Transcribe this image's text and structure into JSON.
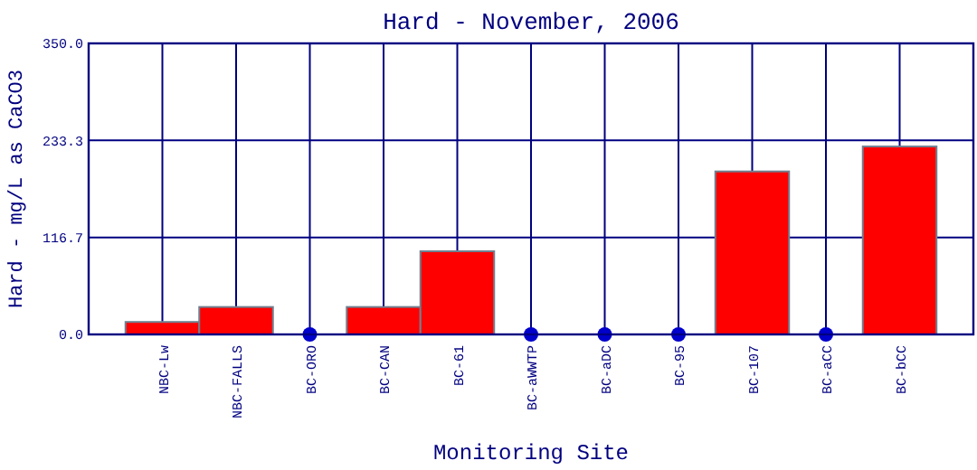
{
  "chart_data": {
    "type": "bar",
    "title": "Hard - November, 2006",
    "xlabel": "Monitoring Site",
    "ylabel": "Hard - mg/L as CaCO3",
    "categories": [
      "NBC-Lw",
      "NBC-FALLS",
      "BC-ORO",
      "BC-CAN",
      "BC-61",
      "BC-aWWTP",
      "BC-aDC",
      "BC-95",
      "BC-107",
      "BC-aCC",
      "BC-bCC"
    ],
    "series": [
      {
        "color": "#ff0000",
        "values": [
          15,
          33,
          null,
          33,
          100,
          null,
          null,
          null,
          196,
          null,
          226
        ]
      },
      {
        "type": "scatter",
        "color": "#0000cc",
        "x": [
          "BC-ORO",
          "BC-aWWTP",
          "BC-aDC",
          "BC-95",
          "BC-aCC"
        ],
        "values": [
          0,
          0,
          0,
          0,
          0
        ]
      }
    ],
    "ylim": [
      0,
      350
    ],
    "yticks": [
      {
        "value": 0,
        "label": "0.0"
      },
      {
        "value": 116.7,
        "label": "116.7"
      },
      {
        "value": 233.3,
        "label": "233.3"
      },
      {
        "value": 350,
        "label": "350.0"
      }
    ],
    "grid": true,
    "marker": "circle"
  }
}
